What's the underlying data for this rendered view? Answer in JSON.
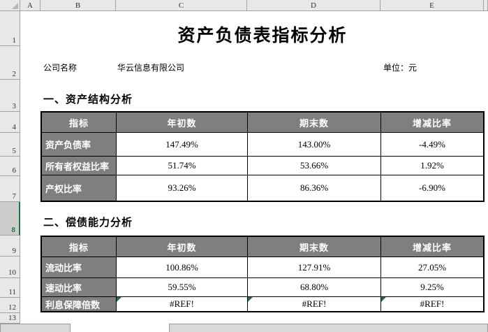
{
  "sheet": {
    "column_headers": [
      "A",
      "B",
      "C",
      "D",
      "E"
    ],
    "row_headers": [
      "1",
      "2",
      "3",
      "4",
      "5",
      "6",
      "7",
      "8",
      "9",
      "10",
      "11",
      "12",
      "13"
    ],
    "selected_row_header": "8"
  },
  "title": "资产负债表指标分析",
  "company_row": {
    "label": "公司名称",
    "name": "华云信息有限公司",
    "unit": "单位：元"
  },
  "sections": [
    {
      "heading": "一、资产结构分析",
      "table": {
        "headers": [
          "指标",
          "年初数",
          "期末数",
          "增减比率"
        ],
        "rows": [
          {
            "label": "资产负债率",
            "values": [
              "147.49%",
              "143.00%",
              "-4.49%"
            ]
          },
          {
            "label": "所有者权益比率",
            "values": [
              "51.74%",
              "53.66%",
              "1.92%"
            ]
          },
          {
            "label": "产权比率",
            "values": [
              "93.26%",
              "86.36%",
              "-6.90%"
            ]
          }
        ]
      }
    },
    {
      "heading": "二、偿债能力分析",
      "table": {
        "headers": [
          "指标",
          "年初数",
          "期末数",
          "增减比率"
        ],
        "rows": [
          {
            "label": "流动比率",
            "values": [
              "100.86%",
              "127.91%",
              "27.05%"
            ]
          },
          {
            "label": "速动比率",
            "values": [
              "59.55%",
              "68.80%",
              "9.25%"
            ]
          },
          {
            "label": "利息保障倍数",
            "values": [
              "#REF!",
              "#REF!",
              "#REF!"
            ],
            "has_error_indicators": true
          }
        ]
      }
    }
  ],
  "colors": {
    "table_header_bg": "#7f7f7f",
    "table_header_text": "#ffffff",
    "selected_row_accent": "#217346",
    "error_indicator_green": "#1e7145",
    "grid_header_bg": "#e8e8e8"
  }
}
